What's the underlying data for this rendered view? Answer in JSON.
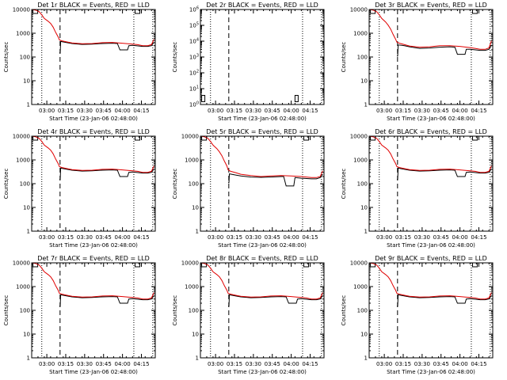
{
  "colors": {
    "events": "#000000",
    "lld": "#e00000",
    "axes": "#000000",
    "background": "#ffffff"
  },
  "shared": {
    "xticks": [
      {
        "t": 12,
        "label": "03:00"
      },
      {
        "t": 27,
        "label": "03:15"
      },
      {
        "t": 42,
        "label": "03:30"
      },
      {
        "t": 57,
        "label": "03:45"
      },
      {
        "t": 72,
        "label": "04:00"
      },
      {
        "t": 87,
        "label": "04:15"
      }
    ],
    "xlabel": "Start Time (23-Jan-06 02:48:00)",
    "ylabel": "Counts/sec",
    "xlim": [
      0,
      98
    ],
    "dotted_lines": [
      8,
      81,
      96
    ],
    "dashed_line": 22.5
  },
  "chart_data": [
    {
      "title": "Det 1r BLACK = Events, RED = LLD",
      "type": "line",
      "yscale": "log",
      "ylim": [
        1,
        10000
      ],
      "yticks": [
        {
          "v": 1,
          "label": "1"
        },
        {
          "v": 10,
          "label": "10"
        },
        {
          "v": 100,
          "label": "100"
        },
        {
          "v": 1000,
          "label": "1000"
        },
        {
          "v": 10000,
          "label": "10000"
        }
      ],
      "lld": {
        "x": [
          0,
          3,
          6,
          8,
          10,
          13,
          15,
          17,
          19,
          21,
          22,
          24,
          28,
          32,
          40,
          48,
          56,
          64,
          72,
          80,
          84,
          88,
          92,
          95,
          97
        ],
        "y": [
          10000,
          9500,
          8000,
          6000,
          4200,
          3200,
          2600,
          1800,
          1100,
          700,
          520,
          480,
          430,
          390,
          360,
          370,
          400,
          410,
          380,
          350,
          330,
          300,
          300,
          330,
          560
        ]
      },
      "events": {
        "x": [
          22,
          22.6,
          23,
          28,
          32,
          40,
          48,
          56,
          64,
          68,
          70,
          76,
          77,
          80,
          88,
          92,
          95,
          97
        ],
        "y": [
          150,
          150,
          450,
          400,
          370,
          340,
          350,
          370,
          380,
          370,
          200,
          200,
          300,
          310,
          280,
          280,
          300,
          420
        ]
      },
      "boxes": [
        {
          "x": 1
        },
        {
          "x": 82
        }
      ]
    },
    {
      "title": "Det 2r BLACK = Events, RED = LLD",
      "type": "line",
      "yscale": "log",
      "ylim": [
        1,
        1000000
      ],
      "yticks": [
        {
          "v": 1,
          "label": "10^0"
        },
        {
          "v": 10,
          "label": "10^1"
        },
        {
          "v": 100,
          "label": "10^2"
        },
        {
          "v": 1000,
          "label": "10^3"
        },
        {
          "v": 10000,
          "label": "10^4"
        },
        {
          "v": 100000,
          "label": "10^5"
        },
        {
          "v": 1000000,
          "label": "10^6"
        }
      ],
      "lld": {
        "x": [],
        "y": []
      },
      "events": {
        "x": [],
        "y": []
      },
      "boxes": [
        {
          "x": 1,
          "vb": 1.5
        },
        {
          "x": 75,
          "vb": 1.5
        }
      ]
    },
    {
      "title": "Det 3r BLACK = Events, RED = LLD",
      "type": "line",
      "yscale": "log",
      "ylim": [
        1,
        10000
      ],
      "yticks": [
        {
          "v": 1,
          "label": "1"
        },
        {
          "v": 10,
          "label": "10"
        },
        {
          "v": 100,
          "label": "100"
        },
        {
          "v": 1000,
          "label": "1000"
        },
        {
          "v": 10000,
          "label": "10000"
        }
      ],
      "lld": {
        "x": [
          0,
          3,
          6,
          8,
          10,
          13,
          15,
          17,
          19,
          21,
          22,
          24,
          28,
          32,
          40,
          48,
          56,
          64,
          72,
          80,
          84,
          88,
          92,
          95,
          97
        ],
        "y": [
          10000,
          9500,
          8000,
          6000,
          4200,
          3000,
          2200,
          1500,
          900,
          560,
          420,
          380,
          330,
          290,
          260,
          270,
          300,
          300,
          280,
          250,
          230,
          210,
          210,
          240,
          480
        ]
      },
      "events": {
        "x": [
          22,
          22.6,
          23,
          28,
          32,
          40,
          48,
          56,
          64,
          68,
          70,
          76,
          77,
          80,
          88,
          92,
          95,
          97
        ],
        "y": [
          110,
          110,
          320,
          300,
          270,
          230,
          240,
          260,
          270,
          260,
          130,
          130,
          210,
          210,
          190,
          190,
          210,
          320
        ]
      },
      "boxes": [
        {
          "x": 1
        },
        {
          "x": 82
        }
      ]
    },
    {
      "title": "Det 4r BLACK = Events, RED = LLD",
      "type": "line",
      "yscale": "log",
      "ylim": [
        1,
        10000
      ],
      "yticks": [
        {
          "v": 1,
          "label": "1"
        },
        {
          "v": 10,
          "label": "10"
        },
        {
          "v": 100,
          "label": "100"
        },
        {
          "v": 1000,
          "label": "1000"
        },
        {
          "v": 10000,
          "label": "10000"
        }
      ],
      "lld": {
        "x": [
          0,
          3,
          6,
          8,
          10,
          13,
          15,
          17,
          19,
          21,
          22,
          24,
          28,
          32,
          40,
          48,
          56,
          64,
          72,
          80,
          84,
          88,
          92,
          95,
          97
        ],
        "y": [
          10000,
          9500,
          8000,
          6000,
          4200,
          3200,
          2600,
          1800,
          1100,
          700,
          520,
          480,
          430,
          390,
          360,
          370,
          400,
          410,
          380,
          350,
          330,
          300,
          300,
          330,
          560
        ]
      },
      "events": {
        "x": [
          22,
          22.6,
          23,
          28,
          32,
          40,
          48,
          56,
          64,
          68,
          70,
          76,
          77,
          80,
          88,
          92,
          95,
          97
        ],
        "y": [
          150,
          150,
          450,
          400,
          370,
          340,
          350,
          370,
          380,
          370,
          200,
          200,
          300,
          310,
          280,
          280,
          300,
          420
        ]
      },
      "boxes": [
        {
          "x": 1
        },
        {
          "x": 82
        }
      ]
    },
    {
      "title": "Det 5r BLACK = Events, RED = LLD",
      "type": "line",
      "yscale": "log",
      "ylim": [
        1,
        10000
      ],
      "yticks": [
        {
          "v": 1,
          "label": "1"
        },
        {
          "v": 10,
          "label": "10"
        },
        {
          "v": 100,
          "label": "100"
        },
        {
          "v": 1000,
          "label": "1000"
        },
        {
          "v": 10000,
          "label": "10000"
        }
      ],
      "lld": {
        "x": [
          0,
          3,
          6,
          8,
          10,
          13,
          15,
          17,
          19,
          21,
          22,
          24,
          28,
          32,
          40,
          48,
          56,
          64,
          72,
          80,
          84,
          88,
          92,
          95,
          97
        ],
        "y": [
          10000,
          9500,
          8000,
          6000,
          4200,
          3000,
          2200,
          1500,
          900,
          560,
          380,
          330,
          290,
          250,
          220,
          200,
          210,
          220,
          210,
          200,
          190,
          180,
          180,
          200,
          350
        ]
      },
      "events": {
        "x": [
          22,
          22.6,
          23,
          28,
          32,
          40,
          48,
          56,
          64,
          66,
          68,
          74,
          75,
          80,
          88,
          92,
          95,
          97
        ],
        "y": [
          110,
          110,
          260,
          230,
          210,
          190,
          185,
          190,
          200,
          200,
          80,
          80,
          180,
          170,
          160,
          160,
          180,
          250
        ]
      },
      "boxes": [
        {
          "x": 1
        },
        {
          "x": 82
        }
      ]
    },
    {
      "title": "Det 6r BLACK = Events, RED = LLD",
      "type": "line",
      "yscale": "log",
      "ylim": [
        1,
        10000
      ],
      "yticks": [
        {
          "v": 1,
          "label": "1"
        },
        {
          "v": 10,
          "label": "10"
        },
        {
          "v": 100,
          "label": "100"
        },
        {
          "v": 1000,
          "label": "1000"
        },
        {
          "v": 10000,
          "label": "10000"
        }
      ],
      "lld": {
        "x": [
          0,
          3,
          6,
          8,
          10,
          13,
          15,
          17,
          19,
          21,
          22,
          24,
          28,
          32,
          40,
          48,
          56,
          64,
          72,
          80,
          84,
          88,
          92,
          95,
          97
        ],
        "y": [
          10000,
          9500,
          8000,
          6000,
          4200,
          3200,
          2600,
          1800,
          1100,
          700,
          520,
          480,
          430,
          390,
          360,
          370,
          400,
          410,
          380,
          350,
          330,
          300,
          300,
          330,
          560
        ]
      },
      "events": {
        "x": [
          22,
          22.6,
          23,
          28,
          32,
          40,
          48,
          56,
          64,
          68,
          70,
          76,
          77,
          80,
          88,
          92,
          95,
          97
        ],
        "y": [
          150,
          150,
          450,
          400,
          370,
          340,
          350,
          370,
          380,
          370,
          200,
          200,
          300,
          310,
          280,
          280,
          300,
          420
        ]
      },
      "boxes": [
        {
          "x": 1
        },
        {
          "x": 82
        }
      ]
    },
    {
      "title": "Det 7r BLACK = Events, RED = LLD",
      "type": "line",
      "yscale": "log",
      "ylim": [
        1,
        10000
      ],
      "yticks": [
        {
          "v": 1,
          "label": "1"
        },
        {
          "v": 10,
          "label": "10"
        },
        {
          "v": 100,
          "label": "100"
        },
        {
          "v": 1000,
          "label": "1000"
        },
        {
          "v": 10000,
          "label": "10000"
        }
      ],
      "lld": {
        "x": [
          0,
          3,
          6,
          8,
          10,
          13,
          15,
          17,
          19,
          21,
          22,
          24,
          28,
          32,
          40,
          48,
          56,
          64,
          72,
          80,
          84,
          88,
          92,
          95,
          97
        ],
        "y": [
          10000,
          9500,
          8000,
          6000,
          4200,
          3200,
          2600,
          1800,
          1100,
          700,
          520,
          480,
          430,
          390,
          360,
          370,
          400,
          410,
          380,
          350,
          330,
          300,
          300,
          330,
          560
        ]
      },
      "events": {
        "x": [
          22,
          22.6,
          23,
          28,
          32,
          40,
          48,
          56,
          64,
          68,
          70,
          76,
          77,
          80,
          88,
          92,
          95,
          97
        ],
        "y": [
          150,
          150,
          450,
          400,
          370,
          340,
          350,
          370,
          380,
          370,
          200,
          200,
          300,
          310,
          280,
          280,
          300,
          420
        ]
      },
      "boxes": [
        {
          "x": 1
        },
        {
          "x": 82
        }
      ]
    },
    {
      "title": "Det 8r BLACK = Events, RED = LLD",
      "type": "line",
      "yscale": "log",
      "ylim": [
        1,
        10000
      ],
      "yticks": [
        {
          "v": 1,
          "label": "1"
        },
        {
          "v": 10,
          "label": "10"
        },
        {
          "v": 100,
          "label": "100"
        },
        {
          "v": 1000,
          "label": "1000"
        },
        {
          "v": 10000,
          "label": "10000"
        }
      ],
      "lld": {
        "x": [
          0,
          3,
          6,
          8,
          10,
          13,
          15,
          17,
          19,
          21,
          22,
          24,
          28,
          32,
          40,
          48,
          56,
          64,
          72,
          80,
          84,
          88,
          92,
          95,
          97
        ],
        "y": [
          10000,
          9500,
          8000,
          6000,
          4200,
          3200,
          2600,
          1800,
          1100,
          700,
          520,
          480,
          430,
          390,
          360,
          370,
          400,
          410,
          380,
          350,
          330,
          300,
          300,
          330,
          560
        ]
      },
      "events": {
        "x": [
          22,
          22.6,
          23,
          28,
          32,
          40,
          48,
          56,
          64,
          68,
          70,
          76,
          77,
          80,
          88,
          92,
          95,
          97
        ],
        "y": [
          150,
          150,
          450,
          400,
          370,
          340,
          350,
          370,
          380,
          370,
          200,
          200,
          300,
          310,
          280,
          280,
          300,
          420
        ]
      },
      "boxes": [
        {
          "x": 1
        },
        {
          "x": 82
        }
      ]
    },
    {
      "title": "Det 9r BLACK = Events, RED = LLD",
      "type": "line",
      "yscale": "log",
      "ylim": [
        1,
        10000
      ],
      "yticks": [
        {
          "v": 1,
          "label": "1"
        },
        {
          "v": 10,
          "label": "10"
        },
        {
          "v": 100,
          "label": "100"
        },
        {
          "v": 1000,
          "label": "1000"
        },
        {
          "v": 10000,
          "label": "10000"
        }
      ],
      "lld": {
        "x": [
          0,
          3,
          6,
          8,
          10,
          13,
          15,
          17,
          19,
          21,
          22,
          24,
          28,
          32,
          40,
          48,
          56,
          64,
          72,
          80,
          84,
          88,
          92,
          95,
          97
        ],
        "y": [
          10000,
          9500,
          8000,
          6000,
          4200,
          3200,
          2600,
          1800,
          1100,
          700,
          520,
          480,
          430,
          390,
          360,
          370,
          400,
          410,
          380,
          350,
          330,
          300,
          300,
          330,
          560
        ]
      },
      "events": {
        "x": [
          22,
          22.6,
          23,
          28,
          32,
          40,
          48,
          56,
          64,
          68,
          70,
          76,
          77,
          80,
          88,
          92,
          95,
          97
        ],
        "y": [
          150,
          150,
          450,
          400,
          370,
          340,
          350,
          370,
          380,
          370,
          200,
          200,
          300,
          310,
          280,
          280,
          300,
          420
        ]
      },
      "boxes": [
        {
          "x": 1
        },
        {
          "x": 82
        }
      ]
    }
  ]
}
